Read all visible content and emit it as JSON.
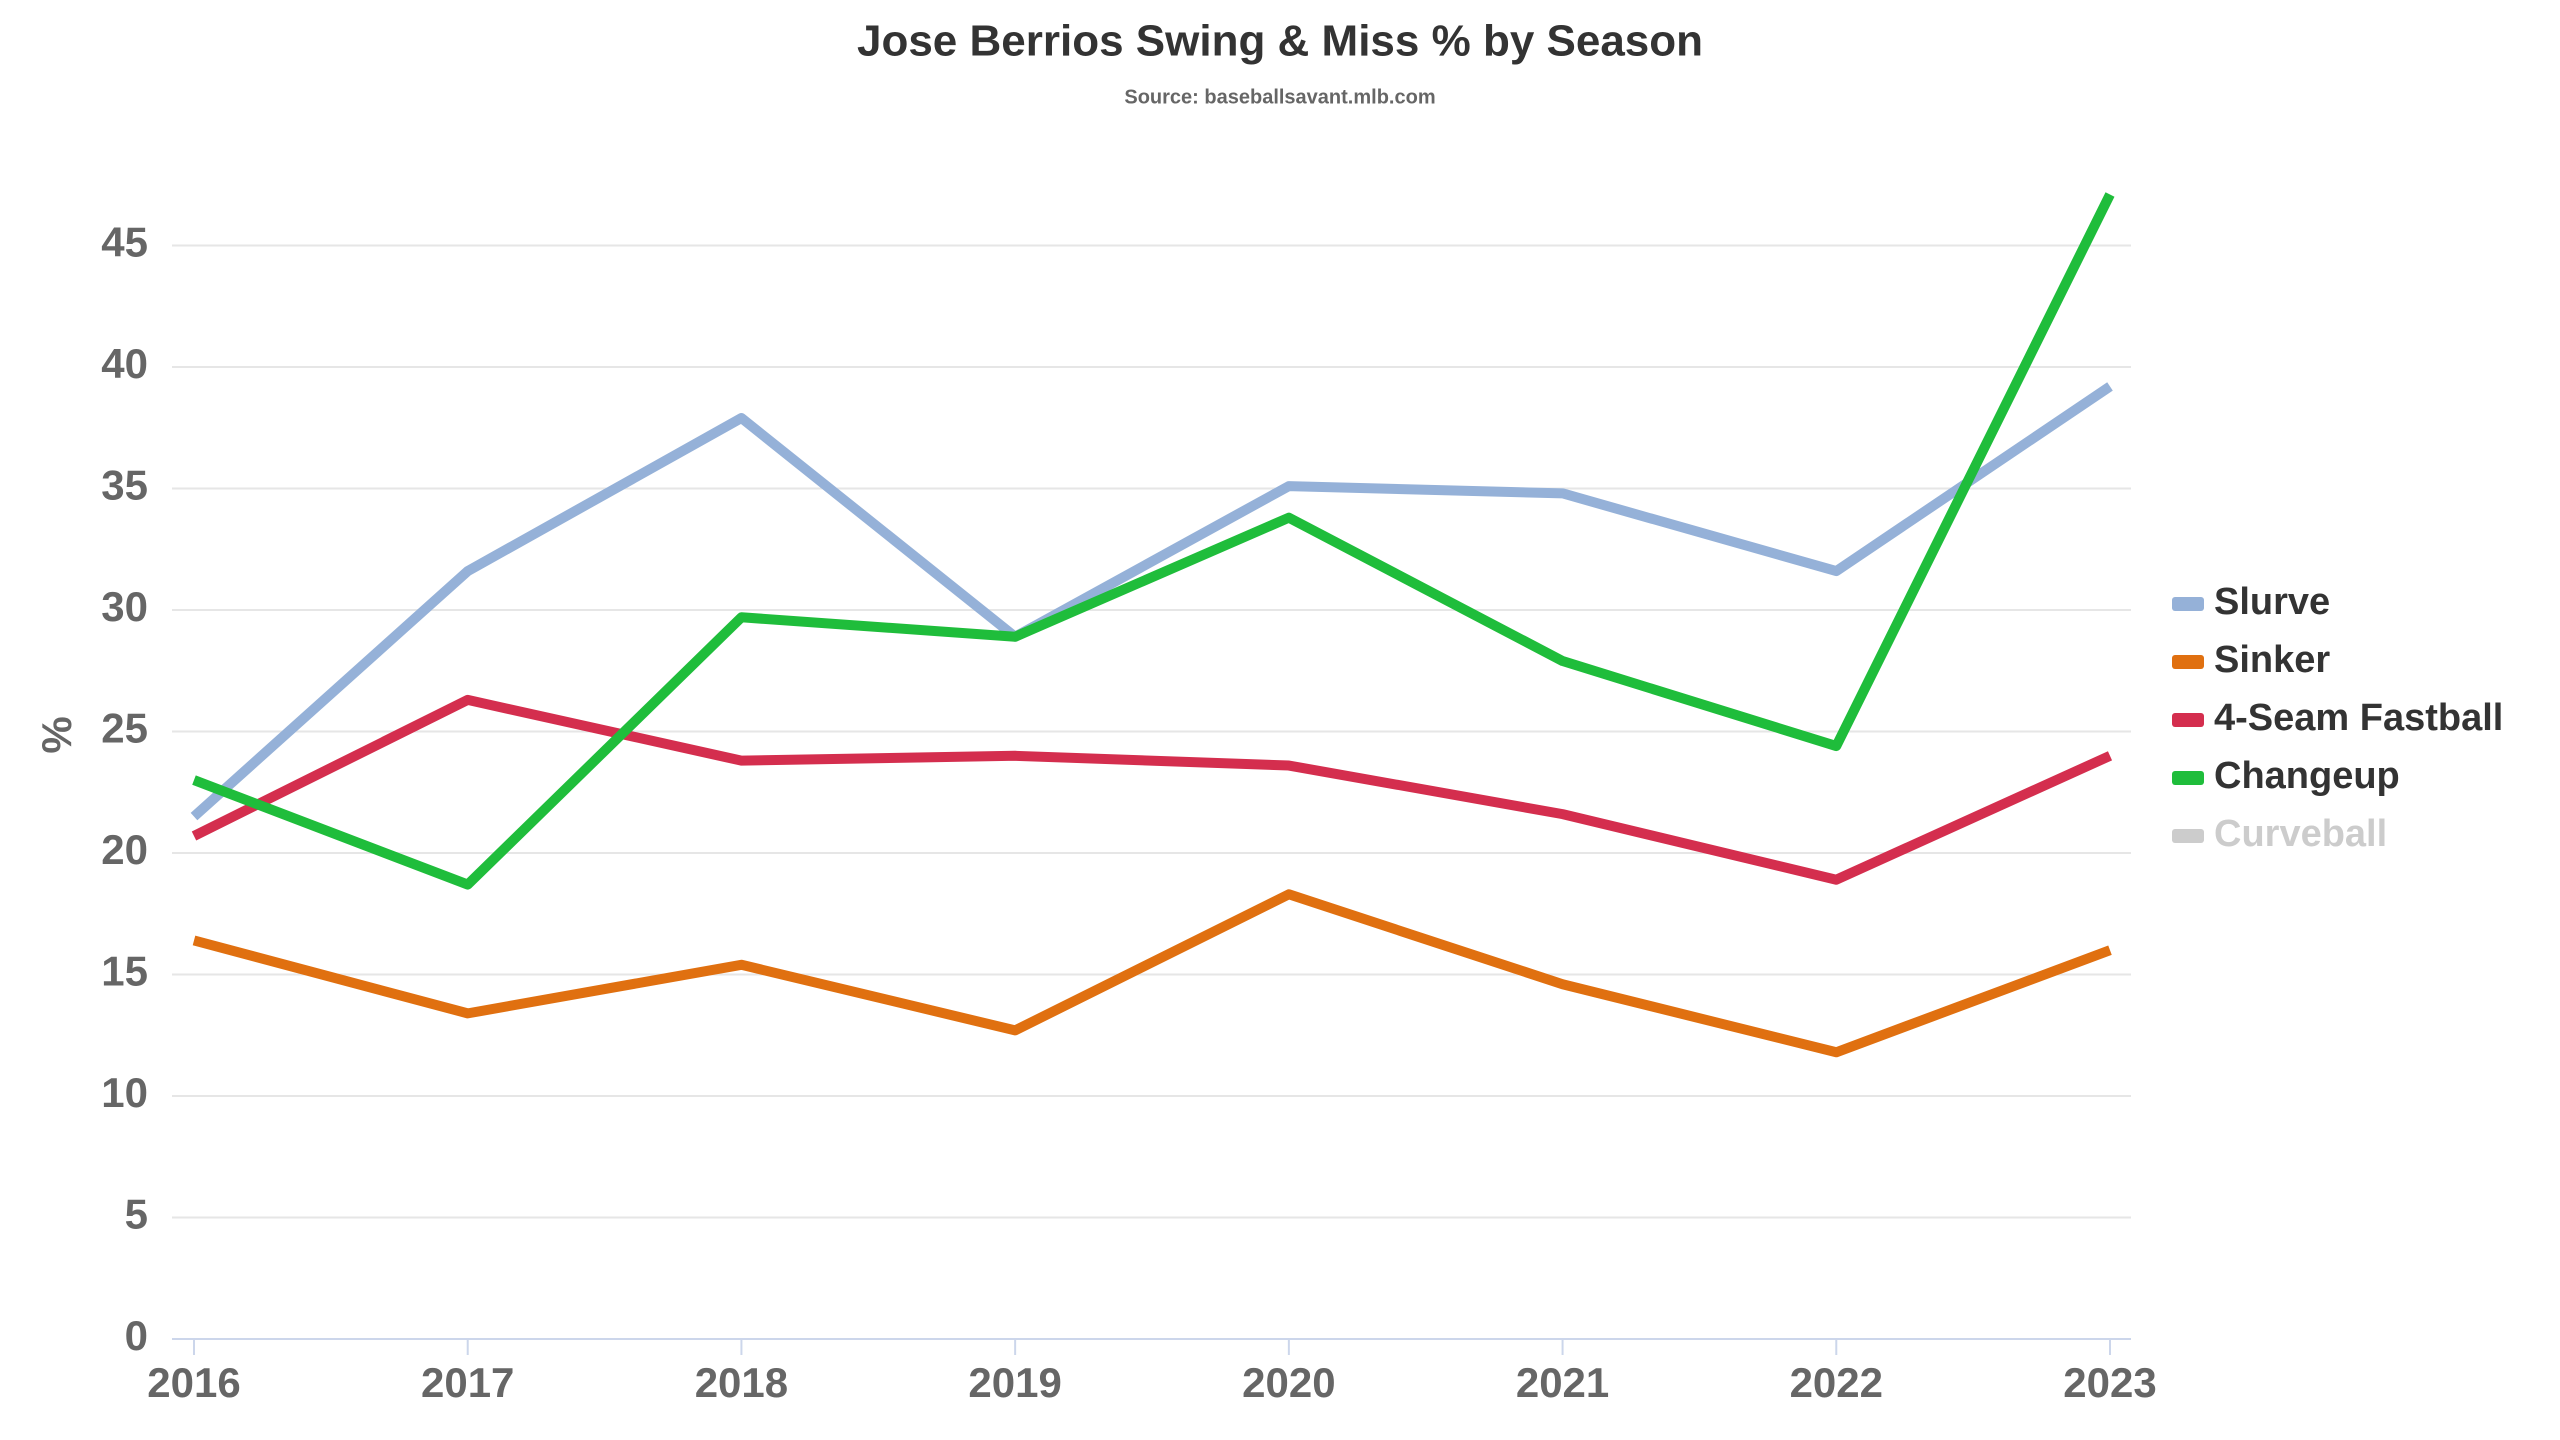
{
  "chart_data": {
    "type": "line",
    "title": "Jose Berrios Swing & Miss % by Season",
    "subtitle": "Source: baseballsavant.mlb.com",
    "y_label": "%",
    "categories": [
      "2016",
      "2017",
      "2018",
      "2019",
      "2020",
      "2021",
      "2022",
      "2023"
    ],
    "series": [
      {
        "name": "Slurve",
        "color": "#95b1d8",
        "values": [
          21.5,
          31.6,
          37.9,
          28.9,
          35.1,
          34.8,
          31.6,
          39.2
        ]
      },
      {
        "name": "Sinker",
        "color": "#e07010",
        "values": [
          16.4,
          13.4,
          15.4,
          12.7,
          18.3,
          14.6,
          11.8,
          16.0
        ]
      },
      {
        "name": "4-Seam Fastball",
        "color": "#d42e4e",
        "values": [
          20.7,
          26.3,
          23.8,
          24.0,
          23.6,
          21.6,
          18.9,
          24.0
        ]
      },
      {
        "name": "Changeup",
        "color": "#1fbd3b",
        "values": [
          23.0,
          18.7,
          29.7,
          28.9,
          33.8,
          27.9,
          24.4,
          47.1
        ]
      },
      {
        "name": "Curveball",
        "color": "#cccccc",
        "visible": false,
        "values": [
          null,
          null,
          null,
          null,
          null,
          null,
          null,
          null
        ]
      }
    ],
    "ylim": [
      0,
      48
    ],
    "yticks": [
      0,
      5,
      10,
      15,
      20,
      25,
      30,
      35,
      40,
      45
    ],
    "grid": true,
    "legend": "right"
  }
}
